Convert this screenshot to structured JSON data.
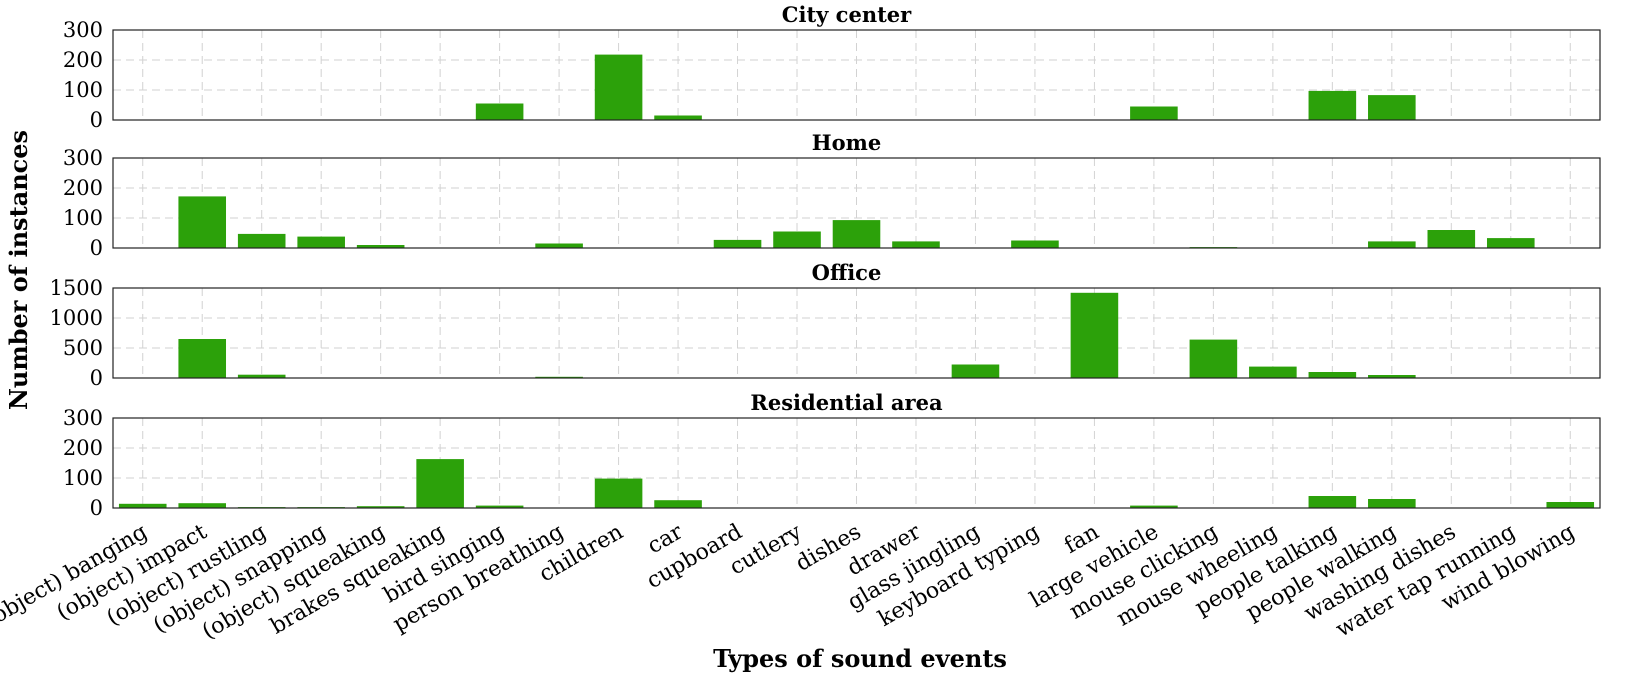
{
  "chart_data": {
    "type": "bar",
    "xlabel": "Types of sound events",
    "ylabel": "Number of instances",
    "bar_color": "#2ca10a",
    "grid": true,
    "categories": [
      "(object) banging",
      "(object) impact",
      "(object) rustling",
      "(object) snapping",
      "(object) squeaking",
      "brakes squeaking",
      "bird singing",
      "person breathing",
      "children",
      "car",
      "cupboard",
      "cutlery",
      "dishes",
      "drawer",
      "glass jingling",
      "keyboard typing",
      "fan",
      "large vehicle",
      "mouse clicking",
      "mouse wheeling",
      "people talking",
      "people walking",
      "washing dishes",
      "water tap running",
      "wind blowing"
    ],
    "panels": [
      {
        "title": "City center",
        "ylim": [
          0,
          300
        ],
        "yticks": [
          0,
          100,
          200,
          300
        ],
        "values": [
          0,
          0,
          0,
          0,
          0,
          0,
          55,
          0,
          218,
          15,
          0,
          0,
          0,
          0,
          0,
          0,
          0,
          45,
          0,
          0,
          97,
          83,
          0,
          0,
          0
        ]
      },
      {
        "title": "Home",
        "ylim": [
          0,
          300
        ],
        "yticks": [
          0,
          100,
          200,
          300
        ],
        "values": [
          0,
          172,
          47,
          38,
          10,
          0,
          0,
          15,
          0,
          0,
          27,
          55,
          93,
          22,
          0,
          25,
          0,
          0,
          3,
          0,
          0,
          22,
          60,
          33,
          0
        ]
      },
      {
        "title": "Office",
        "ylim": [
          0,
          1500
        ],
        "yticks": [
          0,
          500,
          1000,
          1500
        ],
        "values": [
          0,
          650,
          55,
          0,
          0,
          0,
          0,
          20,
          0,
          0,
          0,
          0,
          0,
          0,
          225,
          0,
          1420,
          0,
          640,
          190,
          100,
          50,
          0,
          0,
          0
        ]
      },
      {
        "title": "Residential area",
        "ylim": [
          0,
          300
        ],
        "yticks": [
          0,
          100,
          200,
          300
        ],
        "values": [
          14,
          16,
          3,
          3,
          6,
          163,
          8,
          0,
          98,
          26,
          0,
          0,
          0,
          0,
          0,
          0,
          0,
          8,
          0,
          0,
          40,
          30,
          0,
          0,
          20
        ]
      }
    ]
  }
}
